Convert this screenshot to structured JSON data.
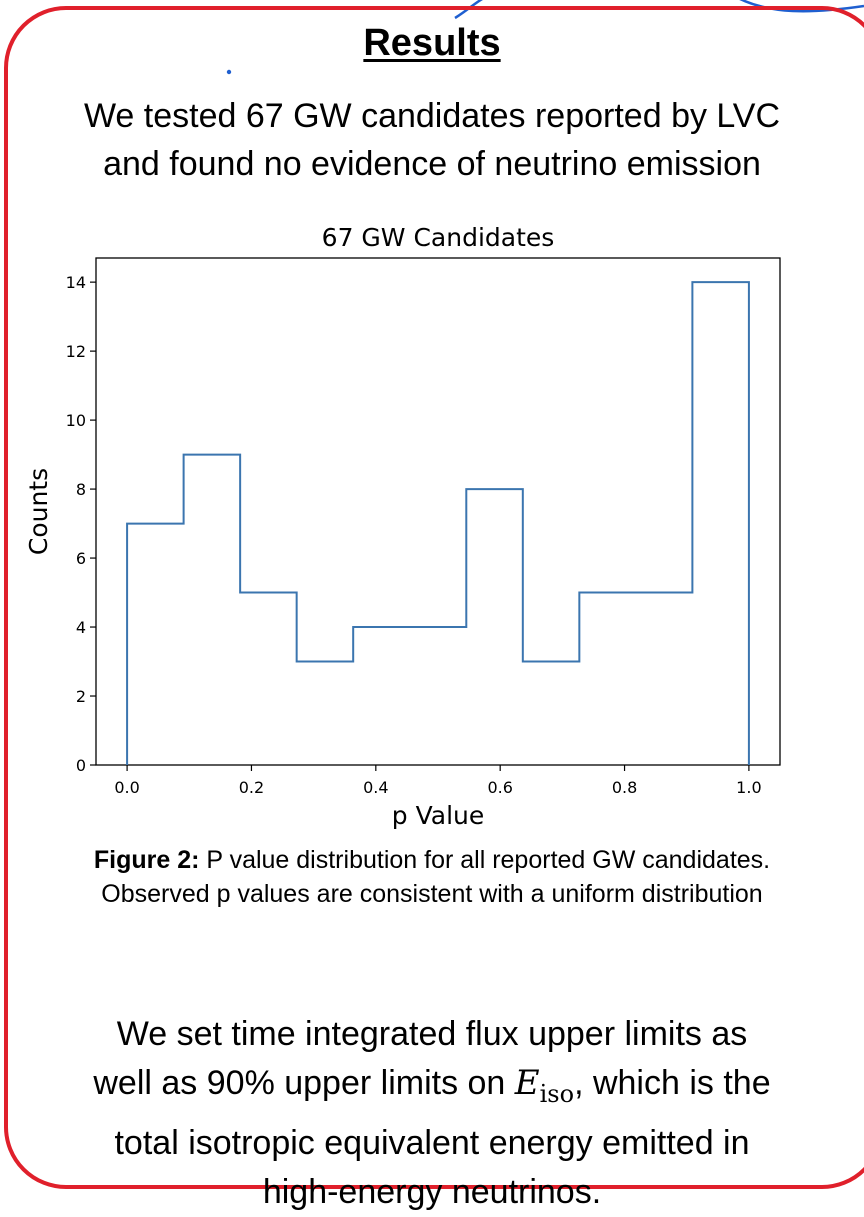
{
  "heading": "Results",
  "intro": {
    "line1": "We tested 67 GW candidates reported by LVC",
    "line2": "and found no evidence of neutrino emission"
  },
  "colors": {
    "border": "#e0202b",
    "accent_stroke": "#1f5fd0",
    "series": "#3b75af"
  },
  "chart_data": {
    "type": "histogram",
    "title": "67 GW Candidates",
    "xlabel": "p Value",
    "ylabel": "Counts",
    "xlim": [
      -0.05,
      1.05
    ],
    "ylim": [
      0,
      14.7
    ],
    "x_ticks": [
      "0.0",
      "0.2",
      "0.4",
      "0.6",
      "0.8",
      "1.0"
    ],
    "x_tick_values": [
      0.0,
      0.2,
      0.4,
      0.6,
      0.8,
      1.0
    ],
    "y_ticks": [
      "0",
      "2",
      "4",
      "6",
      "8",
      "10",
      "12",
      "14"
    ],
    "y_tick_values": [
      0,
      2,
      4,
      6,
      8,
      10,
      12,
      14
    ],
    "bin_edges": [
      0.0,
      0.0909,
      0.1818,
      0.2727,
      0.3636,
      0.4545,
      0.5455,
      0.6364,
      0.7273,
      0.8182,
      0.9091,
      1.0
    ],
    "counts": [
      7,
      9,
      5,
      3,
      4,
      4,
      8,
      3,
      5,
      5,
      14
    ],
    "histtype": "step",
    "grid": false
  },
  "caption": {
    "label": "Figure 2:",
    "line1_rest": " P value distribution for all reported GW candidates.",
    "line2": "Observed p values are consistent with a uniform distribution"
  },
  "conclusion": {
    "line1": "We set time integrated flux upper limits as",
    "line2_pre": "well as 90% upper limits on ",
    "eiso_symbol": "E",
    "eiso_sub": "iso",
    "line2_post": ", which is the",
    "line3": "total isotropic equivalent energy emitted in",
    "line4": "high-energy neutrinos."
  }
}
